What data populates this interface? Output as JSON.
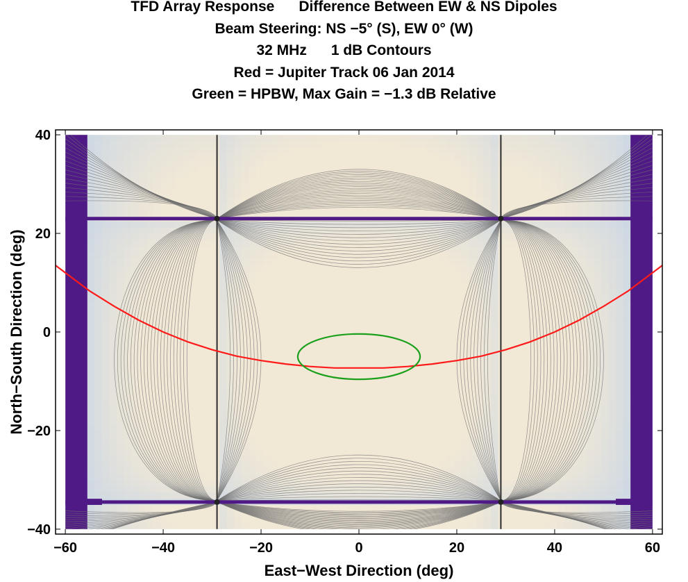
{
  "chart_data": {
    "type": "heatmap",
    "title_lines": [
      "TFD Array Response      Difference Between EW & NS Dipoles",
      "Beam Steering: NS −5° (S), EW 0° (W)",
      "32 MHz      1 dB Contours",
      "Red = Jupiter Track 06 Jan 2014",
      "Green = HPBW, Max Gain = −1.3 dB Relative"
    ],
    "xlabel": "East−West Direction (deg)",
    "ylabel": "North−South Direction (deg)",
    "xlim": [
      -62,
      62
    ],
    "ylim": [
      -41,
      41
    ],
    "data_extent": {
      "x": [
        -60,
        60
      ],
      "y": [
        -40,
        40
      ]
    },
    "x_ticks": [
      -60,
      -40,
      -20,
      0,
      20,
      40,
      60
    ],
    "y_ticks": [
      -40,
      -20,
      0,
      20,
      40
    ],
    "x_tick_labels": [
      "−60",
      "−40",
      "−20",
      "0",
      "20",
      "40",
      "60"
    ],
    "y_tick_labels": [
      "−40",
      "−20",
      "0",
      "20",
      "40"
    ],
    "contour_interval_db": 1,
    "pattern_nulls": {
      "x": [
        -29,
        29
      ],
      "y": [
        23,
        -34.5
      ]
    },
    "colors": {
      "low_region": "#4f1a86",
      "high_response": "#f1e8d6",
      "mid_response": "#cdd8e4",
      "contour_line": "#6d6d6d",
      "jupiter_track": "#ff1a1a",
      "hpbw": "#1aa01a"
    },
    "series": [
      {
        "name": "Jupiter Track 06 Jan 2014",
        "color": "#ff1a1a",
        "x": [
          -62,
          -55,
          -50,
          -45,
          -40,
          -35,
          -30,
          -25,
          -20,
          -15,
          -10,
          -5,
          0,
          5,
          10,
          15,
          20,
          25,
          30,
          35,
          40,
          45,
          50,
          55,
          62
        ],
        "y": [
          13.5,
          8.3,
          5.2,
          2.4,
          0.0,
          -2.0,
          -3.6,
          -4.9,
          -5.8,
          -6.5,
          -7.0,
          -7.3,
          -7.3,
          -7.3,
          -7.0,
          -6.5,
          -5.8,
          -4.9,
          -3.6,
          -2.0,
          0.0,
          2.4,
          5.2,
          8.3,
          13.5
        ]
      },
      {
        "name": "HPBW",
        "color": "#1aa01a",
        "shape": "ellipse",
        "center": [
          0,
          -5
        ],
        "x_half_width": 12.5,
        "y_half_height": 4.6
      }
    ]
  }
}
